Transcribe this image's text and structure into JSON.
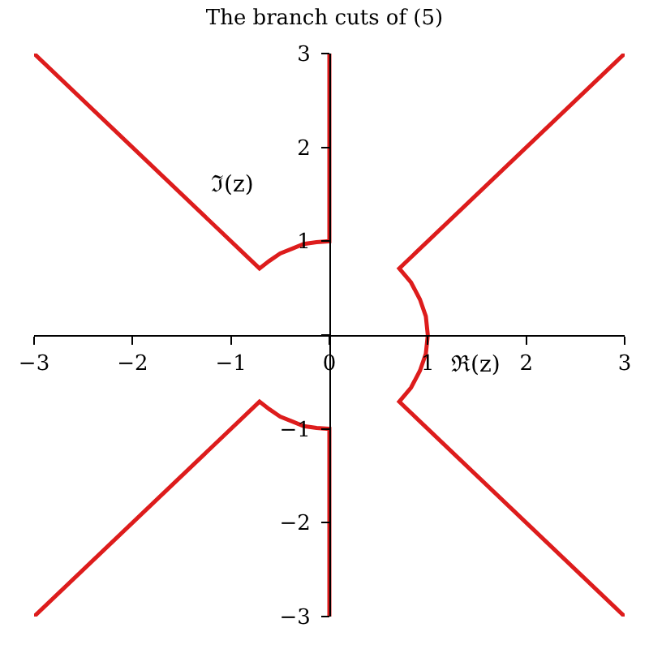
{
  "chart_data": {
    "type": "line",
    "title": "The branch cuts of (5)",
    "xlabel": "ℜ(z)",
    "ylabel": "ℑ(z)",
    "xlim": [
      -3,
      3
    ],
    "ylim": [
      -3,
      3
    ],
    "xticks": [
      -3,
      -2,
      -1,
      0,
      1,
      2,
      3
    ],
    "yticks": [
      -3,
      -2,
      -1,
      {
        "value": 0,
        "label": null
      },
      1,
      2,
      3
    ],
    "marker": "none",
    "line_style": "solid",
    "series": [
      {
        "color": "#dd1c1c",
        "x": [
          -3,
          -0.71,
          -0.61,
          -0.5,
          -0.38,
          -0.26,
          -0.13,
          0,
          0
        ],
        "values": [
          3,
          0.71,
          0.79,
          0.87,
          0.92,
          0.97,
          0.99,
          1,
          3
        ]
      },
      {
        "color": "#dd1c1c",
        "x": [
          -3,
          -0.71,
          -0.61,
          -0.5,
          -0.38,
          -0.26,
          -0.13,
          0,
          0
        ],
        "values": [
          -3,
          -0.71,
          -0.79,
          -0.87,
          -0.92,
          -0.97,
          -0.99,
          -1,
          -3
        ]
      },
      {
        "color": "#dd1c1c",
        "x": [
          3,
          0.71,
          0.83,
          0.92,
          0.98,
          1,
          0.98,
          0.92,
          0.83,
          0.71,
          3
        ],
        "values": [
          3,
          0.71,
          0.56,
          0.38,
          0.2,
          0,
          -0.2,
          -0.38,
          -0.56,
          -0.71,
          -3
        ]
      }
    ]
  }
}
